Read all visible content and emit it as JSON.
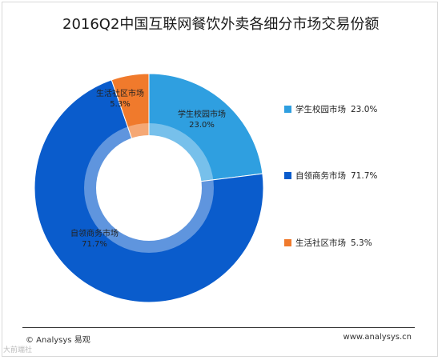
{
  "chart_data": {
    "type": "pie",
    "title": "2016Q2中国互联网餐饮外卖各细分市场交易份额",
    "categories": [
      "学生校园市场",
      "自领商务市场",
      "生活社区市场"
    ],
    "values": [
      23.0,
      71.7,
      5.3
    ],
    "value_labels": [
      "23.0%",
      "71.7%",
      "5.3%"
    ],
    "colors": [
      "#2f9fe0",
      "#0a5ccc",
      "#f07a2c"
    ],
    "legend_position": "right",
    "donut": true
  },
  "footer": {
    "left": "© Analysys 易观",
    "right": "www.analysys.cn"
  },
  "watermark": "大前端社"
}
